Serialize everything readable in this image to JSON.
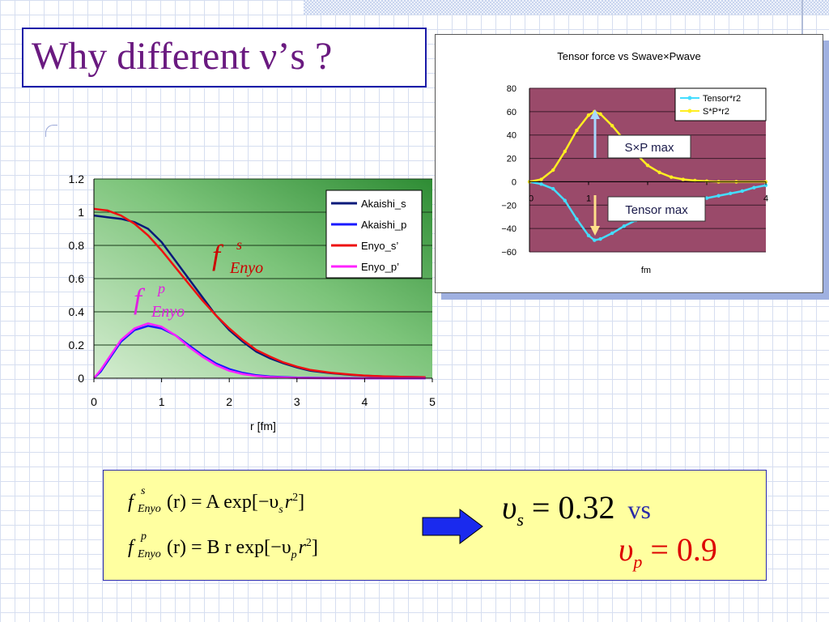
{
  "slide": {
    "title": "Why different ν’s ?",
    "f_symbol": "f",
    "sub_enyo": "Enyo",
    "sup_s": "s",
    "sup_p": "p",
    "sub_s": "s",
    "sub_p": "p",
    "label_color_s": "#cc0000",
    "label_color_p": "#e020e0"
  },
  "formulas": {
    "eq1_rest": "(r) = A exp[−υ",
    "eq1_tail": "r",
    "eq1_sq": "2",
    "eq1_close": "]",
    "eq2_rest": "(r) = B r exp[−υ",
    "eq2_tail": "r",
    "eq2_sq": "2",
    "eq2_close": "]",
    "upsilon": "υ",
    "result_s": "= 0.32",
    "vs": "vs",
    "result_p": "= 0.9",
    "arrow_icon": "right-arrow-icon"
  },
  "chart_data": [
    {
      "type": "line",
      "title": "",
      "xlabel": "r [fm]",
      "ylabel": "",
      "xlim": [
        0,
        5
      ],
      "ylim": [
        0,
        1.2
      ],
      "xticks": [
        "0",
        "1",
        "2",
        "3",
        "4",
        "5"
      ],
      "yticks": [
        "0",
        "0.2",
        "0.4",
        "0.6",
        "0.8",
        "1",
        "1.2"
      ],
      "legend_position": "top-right",
      "background": "green-gradient",
      "series": [
        {
          "name": "Akaishi_s",
          "color": "#0a1a7a",
          "x": [
            0,
            0.2,
            0.4,
            0.6,
            0.8,
            1,
            1.2,
            1.4,
            1.6,
            1.8,
            2,
            2.2,
            2.4,
            2.6,
            2.8,
            3,
            3.2,
            3.5,
            3.8,
            4,
            4.3,
            4.6,
            4.9
          ],
          "y": [
            0.98,
            0.97,
            0.96,
            0.94,
            0.9,
            0.82,
            0.71,
            0.6,
            0.49,
            0.38,
            0.29,
            0.22,
            0.16,
            0.12,
            0.09,
            0.065,
            0.045,
            0.03,
            0.02,
            0.015,
            0.01,
            0.008,
            0.006
          ]
        },
        {
          "name": "Akaishi_p",
          "color": "#1a1aff",
          "x": [
            0,
            0.1,
            0.2,
            0.3,
            0.4,
            0.6,
            0.8,
            1,
            1.2,
            1.4,
            1.6,
            1.8,
            2,
            2.2,
            2.4,
            2.6,
            3,
            3.5,
            4,
            4.5,
            4.9
          ],
          "y": [
            0,
            0.04,
            0.1,
            0.16,
            0.22,
            0.29,
            0.315,
            0.3,
            0.26,
            0.2,
            0.14,
            0.09,
            0.055,
            0.032,
            0.018,
            0.01,
            0.004,
            0.001,
            0,
            0,
            0
          ]
        },
        {
          "name": "Enyo_s’",
          "color": "#ee1111",
          "x": [
            0,
            0.2,
            0.4,
            0.6,
            0.8,
            1,
            1.2,
            1.4,
            1.6,
            1.8,
            2,
            2.2,
            2.4,
            2.6,
            2.8,
            3,
            3.2,
            3.5,
            3.8,
            4,
            4.3,
            4.6,
            4.9
          ],
          "y": [
            1.02,
            1.01,
            0.98,
            0.93,
            0.86,
            0.77,
            0.67,
            0.57,
            0.47,
            0.38,
            0.3,
            0.23,
            0.17,
            0.13,
            0.095,
            0.07,
            0.05,
            0.033,
            0.022,
            0.016,
            0.011,
            0.008,
            0.006
          ]
        },
        {
          "name": "Enyo_p’",
          "color": "#ff22ff",
          "x": [
            0,
            0.1,
            0.2,
            0.3,
            0.4,
            0.6,
            0.8,
            1,
            1.2,
            1.4,
            1.6,
            1.8,
            2,
            2.2,
            2.4,
            2.6,
            3,
            3.5,
            4,
            4.5,
            4.9
          ],
          "y": [
            0,
            0.05,
            0.11,
            0.17,
            0.23,
            0.3,
            0.33,
            0.31,
            0.26,
            0.19,
            0.13,
            0.08,
            0.045,
            0.025,
            0.013,
            0.007,
            0.002,
            0,
            0,
            0,
            0
          ]
        }
      ]
    },
    {
      "type": "line",
      "title": "Tensor force vs Swave×Pwave",
      "xlabel": "fm",
      "ylabel": "",
      "xlim": [
        0,
        4
      ],
      "ylim": [
        -60,
        80
      ],
      "xticks": [
        "0",
        "1",
        "",
        "",
        "4"
      ],
      "yticks": [
        "−60",
        "−40",
        "−20",
        "0",
        "20",
        "40",
        "60",
        "80"
      ],
      "legend_position": "top-right",
      "background": "#9a4a6a",
      "series": [
        {
          "name": "Tensor*r2",
          "color": "#44ddff",
          "x": [
            0,
            0.2,
            0.4,
            0.6,
            0.8,
            1,
            1.1,
            1.2,
            1.4,
            1.6,
            1.8,
            2,
            2.2,
            2.4,
            2.6,
            2.8,
            3,
            3.2,
            3.4,
            3.6,
            3.8,
            4
          ],
          "y": [
            0,
            -2,
            -6,
            -16,
            -32,
            -46,
            -50,
            -49,
            -44,
            -38,
            -33,
            -28,
            -24,
            -21,
            -18,
            -16,
            -14,
            -12,
            -10,
            -8,
            -5,
            -3
          ]
        },
        {
          "name": "S*P*r2",
          "color": "#ffee22",
          "x": [
            0,
            0.2,
            0.4,
            0.6,
            0.8,
            1,
            1.1,
            1.2,
            1.4,
            1.6,
            1.8,
            2,
            2.2,
            2.4,
            2.6,
            2.8,
            3,
            3.2,
            3.5,
            4
          ],
          "y": [
            0,
            2,
            10,
            26,
            44,
            57,
            60,
            58,
            48,
            36,
            24,
            14,
            8,
            4,
            2,
            1,
            0.5,
            0,
            0,
            0
          ]
        }
      ],
      "annotations": [
        "S×P max",
        "Tensor max"
      ]
    }
  ]
}
